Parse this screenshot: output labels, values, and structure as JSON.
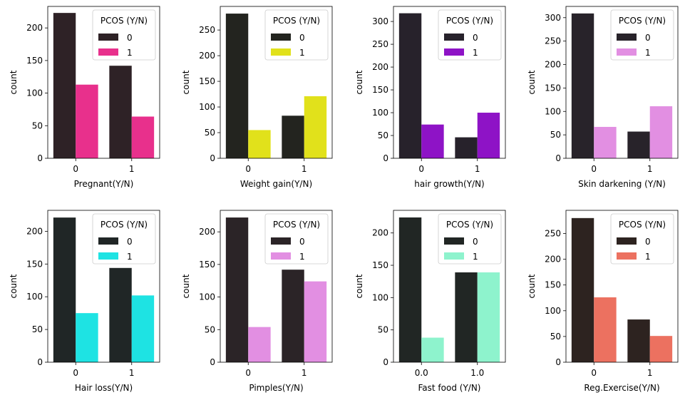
{
  "legend_title": "PCOS (Y/N)",
  "ylabel": "count",
  "chart_data": [
    {
      "type": "bar",
      "xlabel": "Pregnant(Y/N)",
      "categories": [
        "0",
        "1"
      ],
      "yticks": [
        0,
        50,
        100,
        150,
        200
      ],
      "ylim": [
        0,
        233
      ],
      "legend": "top-right",
      "colors": [
        "#2e2226",
        "#e8308c"
      ],
      "series": [
        {
          "name": "0",
          "values": [
            223,
            142
          ]
        },
        {
          "name": "1",
          "values": [
            113,
            64
          ]
        }
      ]
    },
    {
      "type": "bar",
      "xlabel": "Weight gain(Y/N)",
      "categories": [
        "0",
        "1"
      ],
      "yticks": [
        0,
        50,
        100,
        150,
        200,
        250
      ],
      "ylim": [
        0,
        296
      ],
      "legend": "top-right",
      "colors": [
        "#23241f",
        "#e1e11b"
      ],
      "series": [
        {
          "name": "0",
          "values": [
            282,
            83
          ]
        },
        {
          "name": "1",
          "values": [
            55,
            121
          ]
        }
      ]
    },
    {
      "type": "bar",
      "xlabel": "hair growth(Y/N)",
      "categories": [
        "0",
        "1"
      ],
      "yticks": [
        0,
        50,
        100,
        150,
        200,
        250,
        300
      ],
      "ylim": [
        0,
        333
      ],
      "legend": "top-right",
      "colors": [
        "#27222b",
        "#8e13c6"
      ],
      "series": [
        {
          "name": "0",
          "values": [
            318,
            46
          ]
        },
        {
          "name": "1",
          "values": [
            74,
            100
          ]
        }
      ]
    },
    {
      "type": "bar",
      "xlabel": "Skin darkening (Y/N)",
      "categories": [
        "0",
        "1"
      ],
      "yticks": [
        0,
        50,
        100,
        150,
        200,
        250,
        300
      ],
      "ylim": [
        0,
        324
      ],
      "legend": "top-right",
      "colors": [
        "#28232a",
        "#e28fe2"
      ],
      "series": [
        {
          "name": "0",
          "values": [
            309,
            57
          ]
        },
        {
          "name": "1",
          "values": [
            67,
            111
          ]
        }
      ]
    },
    {
      "type": "bar",
      "xlabel": "Hair loss(Y/N)",
      "categories": [
        "0",
        "1"
      ],
      "yticks": [
        0,
        50,
        100,
        150,
        200
      ],
      "ylim": [
        0,
        232
      ],
      "legend": "top-right",
      "colors": [
        "#202626",
        "#1ee3e3"
      ],
      "series": [
        {
          "name": "0",
          "values": [
            221,
            144
          ]
        },
        {
          "name": "1",
          "values": [
            75,
            102
          ]
        }
      ]
    },
    {
      "type": "bar",
      "xlabel": "Pimples(Y/N)",
      "categories": [
        "0",
        "1"
      ],
      "yticks": [
        0,
        50,
        100,
        150,
        200
      ],
      "ylim": [
        0,
        233
      ],
      "legend": "top-right",
      "colors": [
        "#2b2427",
        "#e28fe2"
      ],
      "series": [
        {
          "name": "0",
          "values": [
            222,
            142
          ]
        },
        {
          "name": "1",
          "values": [
            54,
            124
          ]
        }
      ]
    },
    {
      "type": "bar",
      "xlabel": "Fast food (Y/N)",
      "categories": [
        "0.0",
        "1.0"
      ],
      "yticks": [
        0,
        50,
        100,
        150,
        200
      ],
      "ylim": [
        0,
        235
      ],
      "legend": "top-right",
      "colors": [
        "#212624",
        "#8ef3cd"
      ],
      "series": [
        {
          "name": "0",
          "values": [
            224,
            139
          ]
        },
        {
          "name": "1",
          "values": [
            38,
            139
          ]
        }
      ]
    },
    {
      "type": "bar",
      "xlabel": "Reg.Exercise(Y/N)",
      "categories": [
        "0",
        "1"
      ],
      "yticks": [
        0,
        50,
        100,
        150,
        200,
        250
      ],
      "ylim": [
        0,
        295
      ],
      "legend": "top-right",
      "colors": [
        "#2d2320",
        "#ec7160"
      ],
      "series": [
        {
          "name": "0",
          "values": [
            280,
            83
          ]
        },
        {
          "name": "1",
          "values": [
            126,
            51
          ]
        }
      ]
    }
  ]
}
